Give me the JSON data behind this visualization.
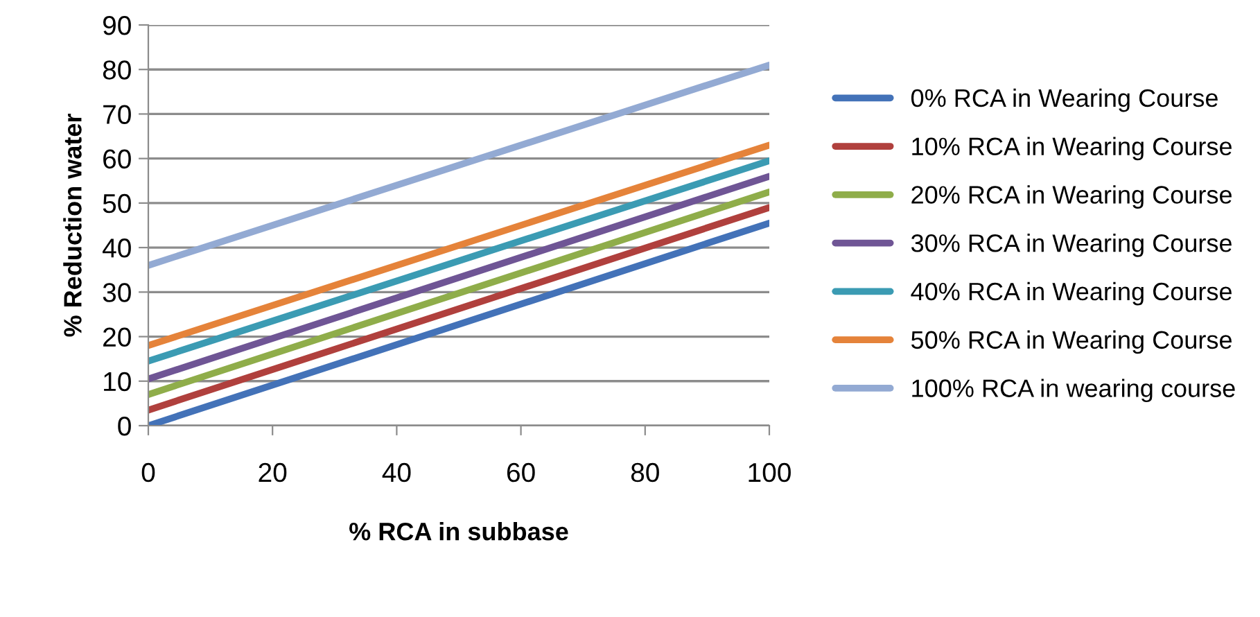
{
  "chart_data": {
    "type": "line",
    "xlabel": "% RCA in subbase",
    "ylabel": "% Reduction water",
    "x": [
      0,
      100
    ],
    "xlim": [
      0,
      100
    ],
    "xticks": [
      0,
      20,
      40,
      60,
      80,
      100
    ],
    "ylim": [
      0,
      90
    ],
    "yticks": [
      0,
      10,
      20,
      30,
      40,
      50,
      60,
      70,
      80,
      90
    ],
    "grid": "y",
    "legend": "right",
    "marker": "none",
    "line_style": "solid",
    "series": [
      {
        "name": "0% RCA in Wearing Course",
        "color": "#4372b8",
        "values": [
          0,
          45.5
        ]
      },
      {
        "name": "10% RCA in Wearing Course",
        "color": "#b0403d",
        "values": [
          3.5,
          49
        ]
      },
      {
        "name": "20% RCA in Wearing Course",
        "color": "#8fad4a",
        "values": [
          7,
          52.5
        ]
      },
      {
        "name": "30% RCA in Wearing Course",
        "color": "#6f5595",
        "values": [
          10.5,
          56
        ]
      },
      {
        "name": "40% RCA in Wearing Course",
        "color": "#3b9bb3",
        "values": [
          14.5,
          59.5
        ]
      },
      {
        "name": "50% RCA in Wearing Course",
        "color": "#e5833a",
        "values": [
          18,
          63
        ]
      },
      {
        "name": "100% RCA in wearing course",
        "color": "#93aad3",
        "values": [
          36,
          81
        ]
      }
    ]
  }
}
